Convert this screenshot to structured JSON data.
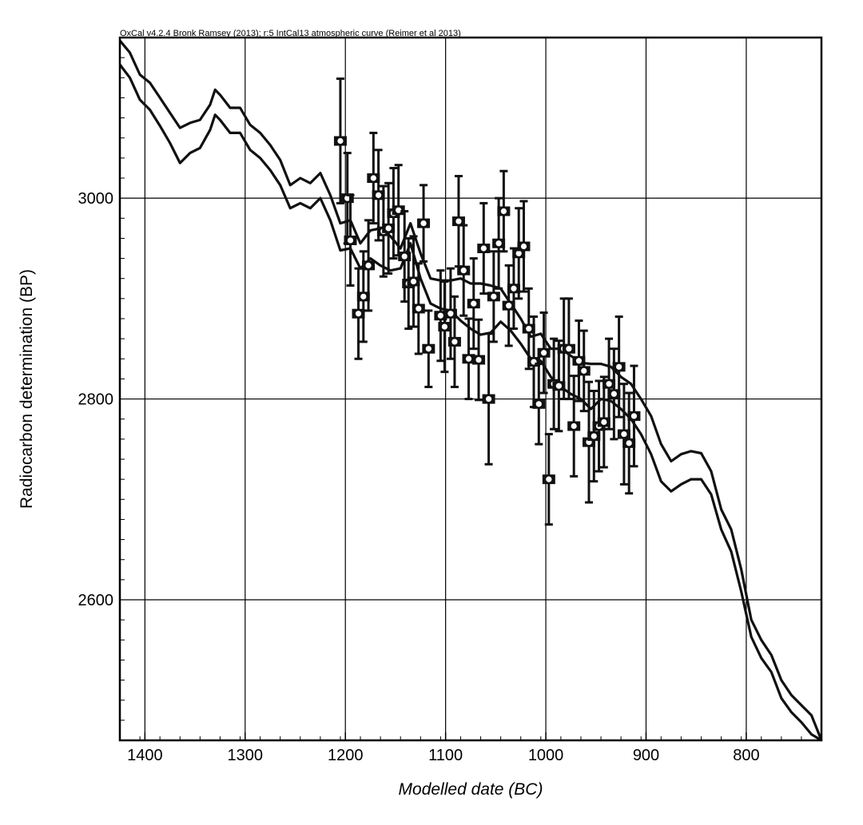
{
  "chart_data": {
    "type": "scatter",
    "title": "OxCal v4.2.4 Bronk Ramsey (2013); r:5 IntCal13 atmospheric curve (Reimer et al 2013)",
    "xlabel": "Modelled date (BC)",
    "ylabel": "Radiocarbon determination (BP)",
    "x_units": "years BC",
    "x_reversed": true,
    "xlim": [
      1425,
      725
    ],
    "ylim": [
      2460,
      3160
    ],
    "xticks": [
      1400,
      1300,
      1200,
      1100,
      1000,
      900,
      800
    ],
    "yticks": [
      2600,
      2800,
      3000
    ],
    "grid": true,
    "legend": "none",
    "curve": {
      "name": "IntCal13 atmospheric curve",
      "upper": [
        [
          1425,
          3157
        ],
        [
          1415,
          3145
        ],
        [
          1405,
          3123
        ],
        [
          1395,
          3115
        ],
        [
          1385,
          3100
        ],
        [
          1375,
          3085
        ],
        [
          1365,
          3070
        ],
        [
          1355,
          3075
        ],
        [
          1345,
          3078
        ],
        [
          1335,
          3093
        ],
        [
          1330,
          3108
        ],
        [
          1325,
          3103
        ],
        [
          1315,
          3090
        ],
        [
          1305,
          3090
        ],
        [
          1295,
          3073
        ],
        [
          1285,
          3065
        ],
        [
          1275,
          3053
        ],
        [
          1265,
          3038
        ],
        [
          1255,
          3013
        ],
        [
          1245,
          3020
        ],
        [
          1235,
          3015
        ],
        [
          1225,
          3025
        ],
        [
          1215,
          3003
        ],
        [
          1205,
          2975
        ],
        [
          1195,
          2978
        ],
        [
          1185,
          2955
        ],
        [
          1175,
          2968
        ],
        [
          1165,
          2970
        ],
        [
          1155,
          2962
        ],
        [
          1145,
          2950
        ],
        [
          1135,
          2975
        ],
        [
          1125,
          2945
        ],
        [
          1115,
          2920
        ],
        [
          1105,
          2918
        ],
        [
          1095,
          2918
        ],
        [
          1085,
          2920
        ],
        [
          1075,
          2915
        ],
        [
          1065,
          2915
        ],
        [
          1055,
          2913
        ],
        [
          1045,
          2910
        ],
        [
          1035,
          2895
        ],
        [
          1025,
          2880
        ],
        [
          1015,
          2862
        ],
        [
          1005,
          2865
        ],
        [
          995,
          2850
        ],
        [
          985,
          2850
        ],
        [
          975,
          2843
        ],
        [
          965,
          2836
        ],
        [
          955,
          2835
        ],
        [
          945,
          2835
        ],
        [
          935,
          2832
        ],
        [
          925,
          2822
        ],
        [
          915,
          2815
        ],
        [
          905,
          2800
        ],
        [
          895,
          2783
        ],
        [
          885,
          2755
        ],
        [
          875,
          2738
        ],
        [
          865,
          2745
        ],
        [
          855,
          2748
        ],
        [
          845,
          2746
        ],
        [
          835,
          2728
        ],
        [
          825,
          2690
        ],
        [
          815,
          2670
        ],
        [
          805,
          2630
        ],
        [
          795,
          2580
        ],
        [
          785,
          2560
        ],
        [
          775,
          2545
        ],
        [
          765,
          2520
        ],
        [
          755,
          2505
        ],
        [
          745,
          2495
        ],
        [
          735,
          2485
        ],
        [
          725,
          2460
        ]
      ],
      "lower": [
        [
          1425,
          3133
        ],
        [
          1415,
          3120
        ],
        [
          1405,
          3098
        ],
        [
          1395,
          3088
        ],
        [
          1385,
          3072
        ],
        [
          1375,
          3055
        ],
        [
          1365,
          3035
        ],
        [
          1355,
          3045
        ],
        [
          1345,
          3050
        ],
        [
          1335,
          3068
        ],
        [
          1330,
          3083
        ],
        [
          1325,
          3078
        ],
        [
          1315,
          3065
        ],
        [
          1305,
          3065
        ],
        [
          1295,
          3048
        ],
        [
          1285,
          3040
        ],
        [
          1275,
          3028
        ],
        [
          1265,
          3013
        ],
        [
          1255,
          2990
        ],
        [
          1245,
          2995
        ],
        [
          1235,
          2990
        ],
        [
          1225,
          3000
        ],
        [
          1215,
          2978
        ],
        [
          1205,
          2948
        ],
        [
          1195,
          2950
        ],
        [
          1185,
          2930
        ],
        [
          1175,
          2940
        ],
        [
          1165,
          2933
        ],
        [
          1155,
          2928
        ],
        [
          1145,
          2930
        ],
        [
          1135,
          2955
        ],
        [
          1125,
          2920
        ],
        [
          1115,
          2895
        ],
        [
          1105,
          2890
        ],
        [
          1095,
          2888
        ],
        [
          1085,
          2878
        ],
        [
          1075,
          2870
        ],
        [
          1065,
          2864
        ],
        [
          1055,
          2866
        ],
        [
          1045,
          2877
        ],
        [
          1035,
          2868
        ],
        [
          1025,
          2855
        ],
        [
          1015,
          2840
        ],
        [
          1005,
          2838
        ],
        [
          995,
          2822
        ],
        [
          985,
          2812
        ],
        [
          975,
          2805
        ],
        [
          965,
          2800
        ],
        [
          955,
          2790
        ],
        [
          945,
          2800
        ],
        [
          935,
          2798
        ],
        [
          925,
          2790
        ],
        [
          915,
          2780
        ],
        [
          905,
          2765
        ],
        [
          895,
          2745
        ],
        [
          885,
          2718
        ],
        [
          875,
          2708
        ],
        [
          865,
          2715
        ],
        [
          855,
          2720
        ],
        [
          845,
          2720
        ],
        [
          835,
          2705
        ],
        [
          825,
          2670
        ],
        [
          815,
          2648
        ],
        [
          805,
          2608
        ],
        [
          795,
          2563
        ],
        [
          785,
          2542
        ],
        [
          775,
          2528
        ],
        [
          765,
          2502
        ],
        [
          755,
          2488
        ],
        [
          745,
          2478
        ],
        [
          735,
          2466
        ],
        [
          725,
          2460
        ]
      ]
    },
    "series": [
      {
        "points": [
          {
            "x": 1205,
            "y": 3057,
            "err": 62
          },
          {
            "x": 1198,
            "y": 3000,
            "err": 45
          },
          {
            "x": 1195,
            "y": 2958,
            "err": 45
          },
          {
            "x": 1187,
            "y": 2885,
            "err": 45
          },
          {
            "x": 1182,
            "y": 2902,
            "err": 45
          },
          {
            "x": 1177,
            "y": 2933,
            "err": 45
          },
          {
            "x": 1172,
            "y": 3020,
            "err": 45
          },
          {
            "x": 1167,
            "y": 3003,
            "err": 45
          },
          {
            "x": 1162,
            "y": 2967,
            "err": 45
          },
          {
            "x": 1157,
            "y": 2970,
            "err": 45
          },
          {
            "x": 1152,
            "y": 2985,
            "err": 45
          },
          {
            "x": 1147,
            "y": 2988,
            "err": 45
          },
          {
            "x": 1141,
            "y": 2942,
            "err": 45
          },
          {
            "x": 1137,
            "y": 2915,
            "err": 45
          },
          {
            "x": 1132,
            "y": 2917,
            "err": 45
          },
          {
            "x": 1127,
            "y": 2890,
            "err": 45
          },
          {
            "x": 1122,
            "y": 2975,
            "err": 38
          },
          {
            "x": 1117,
            "y": 2850,
            "err": 38
          },
          {
            "x": 1105,
            "y": 2883,
            "err": 45
          },
          {
            "x": 1101,
            "y": 2872,
            "err": 45
          },
          {
            "x": 1095,
            "y": 2885,
            "err": 45
          },
          {
            "x": 1091,
            "y": 2857,
            "err": 45
          },
          {
            "x": 1087,
            "y": 2977,
            "err": 45
          },
          {
            "x": 1082,
            "y": 2928,
            "err": 45
          },
          {
            "x": 1077,
            "y": 2840,
            "err": 40
          },
          {
            "x": 1072,
            "y": 2895,
            "err": 45
          },
          {
            "x": 1067,
            "y": 2839,
            "err": 40
          },
          {
            "x": 1062,
            "y": 2950,
            "err": 45
          },
          {
            "x": 1057,
            "y": 2800,
            "err": 65
          },
          {
            "x": 1052,
            "y": 2902,
            "err": 45
          },
          {
            "x": 1047,
            "y": 2955,
            "err": 45
          },
          {
            "x": 1042,
            "y": 2987,
            "err": 40
          },
          {
            "x": 1037,
            "y": 2893,
            "err": 40
          },
          {
            "x": 1032,
            "y": 2910,
            "err": 40
          },
          {
            "x": 1027,
            "y": 2945,
            "err": 45
          },
          {
            "x": 1022,
            "y": 2952,
            "err": 45
          },
          {
            "x": 1017,
            "y": 2870,
            "err": 40
          },
          {
            "x": 1012,
            "y": 2837,
            "err": 45
          },
          {
            "x": 1007,
            "y": 2795,
            "err": 40
          },
          {
            "x": 1002,
            "y": 2846,
            "err": 40
          },
          {
            "x": 997,
            "y": 2720,
            "err": 45
          },
          {
            "x": 992,
            "y": 2815,
            "err": 45
          },
          {
            "x": 987,
            "y": 2813,
            "err": 45
          },
          {
            "x": 982,
            "y": 2850,
            "err": 50
          },
          {
            "x": 977,
            "y": 2850,
            "err": 50
          },
          {
            "x": 972,
            "y": 2773,
            "err": 50
          },
          {
            "x": 967,
            "y": 2838,
            "err": 40
          },
          {
            "x": 962,
            "y": 2828,
            "err": 40
          },
          {
            "x": 957,
            "y": 2757,
            "err": 60
          },
          {
            "x": 952,
            "y": 2763,
            "err": 45
          },
          {
            "x": 947,
            "y": 2773,
            "err": 45
          },
          {
            "x": 942,
            "y": 2777,
            "err": 45
          },
          {
            "x": 937,
            "y": 2815,
            "err": 45
          },
          {
            "x": 932,
            "y": 2805,
            "err": 45
          },
          {
            "x": 927,
            "y": 2832,
            "err": 50
          },
          {
            "x": 922,
            "y": 2765,
            "err": 50
          },
          {
            "x": 917,
            "y": 2756,
            "err": 50
          },
          {
            "x": 912,
            "y": 2783,
            "err": 50
          }
        ]
      }
    ]
  }
}
